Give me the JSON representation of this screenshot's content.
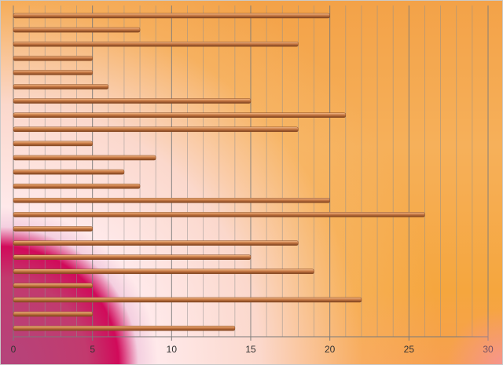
{
  "chart_data": {
    "type": "bar",
    "orientation": "horizontal",
    "title": "",
    "xlabel": "",
    "ylabel": "",
    "xlim": [
      0,
      30
    ],
    "x_ticks": [
      0,
      5,
      10,
      15,
      20,
      25,
      30
    ],
    "x_tick_labels": [
      "0",
      "5",
      "10",
      "15",
      "20",
      "25",
      "30"
    ],
    "grid": "vertical",
    "values": [
      20,
      8,
      18,
      5,
      5,
      6,
      15,
      21,
      18,
      5,
      9,
      7,
      8,
      20,
      26,
      5,
      18,
      15,
      19,
      5,
      22,
      5,
      14
    ],
    "colors": {
      "bar": "#c97a45",
      "bar_highlight": "#f2bb8a",
      "bar_shadow": "#7a3f1c",
      "grid": "#8f8f8f",
      "axis": "#7a7a7a"
    }
  }
}
